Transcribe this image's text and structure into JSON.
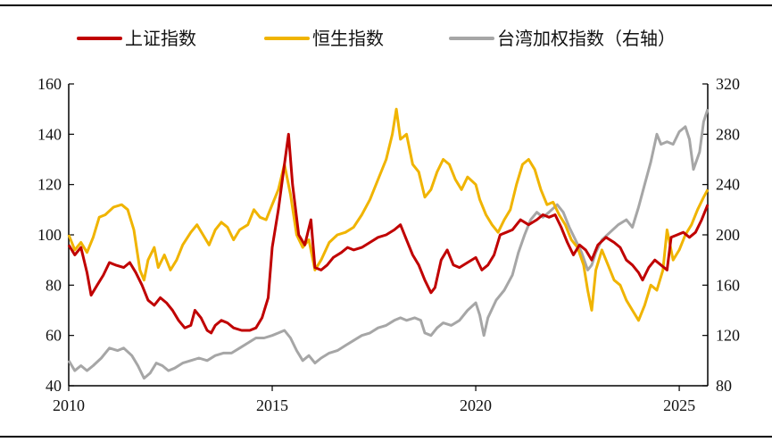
{
  "chart_data": {
    "type": "line",
    "title": "",
    "xlabel": "",
    "ylabel": "",
    "legend_placement": "top",
    "grid": false,
    "x_range": [
      2010,
      2025.7
    ],
    "x_ticks": [
      "2010",
      "2015",
      "2020",
      "2025"
    ],
    "y_left": {
      "range": [
        40,
        160
      ],
      "ticks": [
        "40",
        "60",
        "80",
        "100",
        "120",
        "140",
        "160"
      ]
    },
    "y_right": {
      "range": [
        80,
        320
      ],
      "ticks": [
        "80",
        "120",
        "160",
        "200",
        "240",
        "280",
        "320"
      ]
    },
    "series": [
      {
        "name": "上证指数",
        "axis": "left",
        "color": "#c00000",
        "points": [
          [
            2010.0,
            96
          ],
          [
            2010.15,
            92
          ],
          [
            2010.3,
            95
          ],
          [
            2010.45,
            85
          ],
          [
            2010.55,
            76
          ],
          [
            2010.7,
            80
          ],
          [
            2010.85,
            84
          ],
          [
            2011.0,
            89
          ],
          [
            2011.15,
            88
          ],
          [
            2011.35,
            87
          ],
          [
            2011.5,
            89
          ],
          [
            2011.65,
            85
          ],
          [
            2011.8,
            80
          ],
          [
            2011.95,
            74
          ],
          [
            2012.1,
            72
          ],
          [
            2012.25,
            75
          ],
          [
            2012.4,
            73
          ],
          [
            2012.55,
            70
          ],
          [
            2012.7,
            66
          ],
          [
            2012.85,
            63
          ],
          [
            2013.0,
            64
          ],
          [
            2013.1,
            70
          ],
          [
            2013.25,
            67
          ],
          [
            2013.4,
            62
          ],
          [
            2013.5,
            61
          ],
          [
            2013.6,
            64
          ],
          [
            2013.75,
            66
          ],
          [
            2013.9,
            65
          ],
          [
            2014.05,
            63
          ],
          [
            2014.25,
            62
          ],
          [
            2014.45,
            62
          ],
          [
            2014.6,
            63
          ],
          [
            2014.75,
            67
          ],
          [
            2014.9,
            75
          ],
          [
            2015.0,
            95
          ],
          [
            2015.15,
            110
          ],
          [
            2015.3,
            128
          ],
          [
            2015.4,
            140
          ],
          [
            2015.5,
            120
          ],
          [
            2015.65,
            100
          ],
          [
            2015.8,
            96
          ],
          [
            2015.95,
            106
          ],
          [
            2016.05,
            87
          ],
          [
            2016.2,
            86
          ],
          [
            2016.35,
            88
          ],
          [
            2016.5,
            91
          ],
          [
            2016.7,
            93
          ],
          [
            2016.85,
            95
          ],
          [
            2017.0,
            94
          ],
          [
            2017.2,
            95
          ],
          [
            2017.4,
            97
          ],
          [
            2017.6,
            99
          ],
          [
            2017.8,
            100
          ],
          [
            2018.0,
            102
          ],
          [
            2018.15,
            104
          ],
          [
            2018.3,
            98
          ],
          [
            2018.45,
            92
          ],
          [
            2018.6,
            88
          ],
          [
            2018.75,
            82
          ],
          [
            2018.9,
            77
          ],
          [
            2019.0,
            79
          ],
          [
            2019.15,
            90
          ],
          [
            2019.3,
            94
          ],
          [
            2019.45,
            88
          ],
          [
            2019.6,
            87
          ],
          [
            2019.8,
            89
          ],
          [
            2020.0,
            91
          ],
          [
            2020.15,
            86
          ],
          [
            2020.3,
            88
          ],
          [
            2020.45,
            92
          ],
          [
            2020.6,
            100
          ],
          [
            2020.75,
            101
          ],
          [
            2020.9,
            102
          ],
          [
            2021.1,
            106
          ],
          [
            2021.3,
            104
          ],
          [
            2021.5,
            106
          ],
          [
            2021.65,
            108
          ],
          [
            2021.8,
            107
          ],
          [
            2021.95,
            108
          ],
          [
            2022.1,
            103
          ],
          [
            2022.25,
            97
          ],
          [
            2022.4,
            92
          ],
          [
            2022.55,
            96
          ],
          [
            2022.7,
            94
          ],
          [
            2022.85,
            90
          ],
          [
            2023.0,
            96
          ],
          [
            2023.2,
            99
          ],
          [
            2023.4,
            97
          ],
          [
            2023.55,
            95
          ],
          [
            2023.7,
            90
          ],
          [
            2023.85,
            88
          ],
          [
            2024.0,
            85
          ],
          [
            2024.1,
            82
          ],
          [
            2024.25,
            87
          ],
          [
            2024.4,
            90
          ],
          [
            2024.55,
            88
          ],
          [
            2024.7,
            86
          ],
          [
            2024.8,
            99
          ],
          [
            2024.95,
            100
          ],
          [
            2025.1,
            101
          ],
          [
            2025.25,
            99
          ],
          [
            2025.4,
            101
          ],
          [
            2025.55,
            106
          ],
          [
            2025.7,
            112
          ]
        ]
      },
      {
        "name": "恒生指数",
        "axis": "left",
        "color": "#f0b400",
        "points": [
          [
            2010.0,
            100
          ],
          [
            2010.15,
            94
          ],
          [
            2010.3,
            97
          ],
          [
            2010.45,
            93
          ],
          [
            2010.6,
            99
          ],
          [
            2010.75,
            107
          ],
          [
            2010.9,
            108
          ],
          [
            2011.1,
            111
          ],
          [
            2011.3,
            112
          ],
          [
            2011.45,
            110
          ],
          [
            2011.6,
            102
          ],
          [
            2011.75,
            86
          ],
          [
            2011.85,
            82
          ],
          [
            2011.95,
            90
          ],
          [
            2012.1,
            95
          ],
          [
            2012.2,
            87
          ],
          [
            2012.35,
            92
          ],
          [
            2012.5,
            86
          ],
          [
            2012.65,
            90
          ],
          [
            2012.8,
            96
          ],
          [
            2013.0,
            101
          ],
          [
            2013.15,
            104
          ],
          [
            2013.3,
            100
          ],
          [
            2013.45,
            96
          ],
          [
            2013.6,
            102
          ],
          [
            2013.75,
            105
          ],
          [
            2013.9,
            103
          ],
          [
            2014.05,
            98
          ],
          [
            2014.2,
            102
          ],
          [
            2014.4,
            104
          ],
          [
            2014.55,
            110
          ],
          [
            2014.7,
            107
          ],
          [
            2014.85,
            106
          ],
          [
            2015.0,
            112
          ],
          [
            2015.15,
            118
          ],
          [
            2015.3,
            128
          ],
          [
            2015.45,
            116
          ],
          [
            2015.6,
            100
          ],
          [
            2015.75,
            95
          ],
          [
            2015.9,
            98
          ],
          [
            2016.05,
            86
          ],
          [
            2016.2,
            90
          ],
          [
            2016.4,
            97
          ],
          [
            2016.6,
            100
          ],
          [
            2016.8,
            101
          ],
          [
            2017.0,
            103
          ],
          [
            2017.2,
            108
          ],
          [
            2017.4,
            114
          ],
          [
            2017.6,
            122
          ],
          [
            2017.8,
            130
          ],
          [
            2017.95,
            140
          ],
          [
            2018.05,
            150
          ],
          [
            2018.15,
            138
          ],
          [
            2018.3,
            140
          ],
          [
            2018.45,
            128
          ],
          [
            2018.6,
            125
          ],
          [
            2018.75,
            115
          ],
          [
            2018.9,
            118
          ],
          [
            2019.05,
            125
          ],
          [
            2019.2,
            130
          ],
          [
            2019.35,
            128
          ],
          [
            2019.5,
            122
          ],
          [
            2019.65,
            118
          ],
          [
            2019.8,
            123
          ],
          [
            2020.0,
            120
          ],
          [
            2020.1,
            114
          ],
          [
            2020.25,
            108
          ],
          [
            2020.4,
            104
          ],
          [
            2020.55,
            101
          ],
          [
            2020.7,
            106
          ],
          [
            2020.85,
            110
          ],
          [
            2021.0,
            120
          ],
          [
            2021.15,
            128
          ],
          [
            2021.3,
            130
          ],
          [
            2021.45,
            126
          ],
          [
            2021.6,
            118
          ],
          [
            2021.75,
            112
          ],
          [
            2021.9,
            113
          ],
          [
            2022.05,
            108
          ],
          [
            2022.2,
            104
          ],
          [
            2022.35,
            98
          ],
          [
            2022.5,
            95
          ],
          [
            2022.65,
            88
          ],
          [
            2022.75,
            78
          ],
          [
            2022.85,
            70
          ],
          [
            2022.95,
            86
          ],
          [
            2023.1,
            94
          ],
          [
            2023.25,
            88
          ],
          [
            2023.4,
            82
          ],
          [
            2023.55,
            80
          ],
          [
            2023.7,
            74
          ],
          [
            2023.85,
            70
          ],
          [
            2024.0,
            66
          ],
          [
            2024.15,
            72
          ],
          [
            2024.3,
            80
          ],
          [
            2024.45,
            78
          ],
          [
            2024.6,
            86
          ],
          [
            2024.7,
            102
          ],
          [
            2024.85,
            90
          ],
          [
            2025.0,
            94
          ],
          [
            2025.15,
            100
          ],
          [
            2025.3,
            104
          ],
          [
            2025.45,
            110
          ],
          [
            2025.6,
            115
          ],
          [
            2025.7,
            118
          ]
        ]
      },
      {
        "name": "台湾加权指数（右轴）",
        "axis": "right",
        "color": "#a6a6a6",
        "points": [
          [
            2010.0,
            100
          ],
          [
            2010.15,
            92
          ],
          [
            2010.3,
            96
          ],
          [
            2010.45,
            92
          ],
          [
            2010.6,
            96
          ],
          [
            2010.8,
            102
          ],
          [
            2011.0,
            110
          ],
          [
            2011.2,
            108
          ],
          [
            2011.35,
            110
          ],
          [
            2011.55,
            104
          ],
          [
            2011.7,
            96
          ],
          [
            2011.85,
            86
          ],
          [
            2012.0,
            90
          ],
          [
            2012.15,
            98
          ],
          [
            2012.3,
            96
          ],
          [
            2012.45,
            92
          ],
          [
            2012.6,
            94
          ],
          [
            2012.8,
            98
          ],
          [
            2013.0,
            100
          ],
          [
            2013.2,
            102
          ],
          [
            2013.4,
            100
          ],
          [
            2013.6,
            104
          ],
          [
            2013.8,
            106
          ],
          [
            2014.0,
            106
          ],
          [
            2014.2,
            110
          ],
          [
            2014.4,
            114
          ],
          [
            2014.6,
            118
          ],
          [
            2014.8,
            118
          ],
          [
            2015.0,
            120
          ],
          [
            2015.15,
            122
          ],
          [
            2015.3,
            124
          ],
          [
            2015.45,
            118
          ],
          [
            2015.6,
            108
          ],
          [
            2015.75,
            100
          ],
          [
            2015.9,
            104
          ],
          [
            2016.05,
            98
          ],
          [
            2016.2,
            102
          ],
          [
            2016.4,
            106
          ],
          [
            2016.6,
            108
          ],
          [
            2016.8,
            112
          ],
          [
            2017.0,
            116
          ],
          [
            2017.2,
            120
          ],
          [
            2017.4,
            122
          ],
          [
            2017.6,
            126
          ],
          [
            2017.8,
            128
          ],
          [
            2018.0,
            132
          ],
          [
            2018.15,
            134
          ],
          [
            2018.3,
            132
          ],
          [
            2018.5,
            134
          ],
          [
            2018.65,
            132
          ],
          [
            2018.75,
            122
          ],
          [
            2018.9,
            120
          ],
          [
            2019.05,
            126
          ],
          [
            2019.2,
            130
          ],
          [
            2019.4,
            128
          ],
          [
            2019.6,
            132
          ],
          [
            2019.8,
            140
          ],
          [
            2020.0,
            146
          ],
          [
            2020.1,
            136
          ],
          [
            2020.2,
            120
          ],
          [
            2020.3,
            134
          ],
          [
            2020.5,
            148
          ],
          [
            2020.7,
            156
          ],
          [
            2020.9,
            168
          ],
          [
            2021.05,
            186
          ],
          [
            2021.2,
            200
          ],
          [
            2021.35,
            212
          ],
          [
            2021.5,
            218
          ],
          [
            2021.65,
            214
          ],
          [
            2021.8,
            218
          ],
          [
            2022.0,
            224
          ],
          [
            2022.15,
            218
          ],
          [
            2022.3,
            206
          ],
          [
            2022.45,
            196
          ],
          [
            2022.6,
            186
          ],
          [
            2022.75,
            172
          ],
          [
            2022.85,
            176
          ],
          [
            2022.95,
            186
          ],
          [
            2023.1,
            196
          ],
          [
            2023.3,
            202
          ],
          [
            2023.5,
            208
          ],
          [
            2023.7,
            212
          ],
          [
            2023.85,
            206
          ],
          [
            2024.0,
            222
          ],
          [
            2024.15,
            240
          ],
          [
            2024.3,
            258
          ],
          [
            2024.45,
            280
          ],
          [
            2024.55,
            272
          ],
          [
            2024.7,
            274
          ],
          [
            2024.85,
            272
          ],
          [
            2025.0,
            282
          ],
          [
            2025.15,
            286
          ],
          [
            2025.25,
            276
          ],
          [
            2025.35,
            252
          ],
          [
            2025.5,
            266
          ],
          [
            2025.6,
            290
          ],
          [
            2025.7,
            300
          ]
        ]
      }
    ]
  }
}
